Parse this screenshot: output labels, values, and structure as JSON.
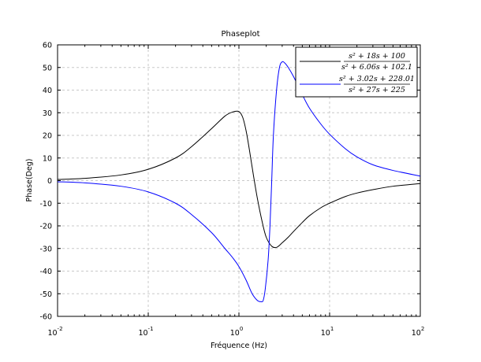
{
  "chart_data": {
    "type": "line",
    "title": "Phaseplot",
    "xlabel": "Fréquence (Hz)",
    "ylabel": "Phase(Deg)",
    "xscale": "log",
    "xlim": [
      0.01,
      100
    ],
    "ylim": [
      -60,
      60
    ],
    "grid": true,
    "legend_position": "top-right",
    "x_ticks": [
      {
        "base": "10",
        "exp": "-2"
      },
      {
        "base": "10",
        "exp": "-1"
      },
      {
        "base": "10",
        "exp": "0"
      },
      {
        "base": "10",
        "exp": "1"
      },
      {
        "base": "10",
        "exp": "2"
      }
    ],
    "y_ticks": [
      60,
      50,
      40,
      30,
      20,
      10,
      0,
      -10,
      -20,
      -30,
      -40,
      -50,
      -60
    ],
    "series": [
      {
        "color": "#000000",
        "legend": {
          "numerator": "s² + 18s + 100",
          "denominator": "s² + 6.06s + 102.1"
        },
        "x": [
          0.01,
          0.02,
          0.05,
          0.1,
          0.2,
          0.3,
          0.5,
          0.7,
          0.85,
          1.0,
          1.1,
          1.2,
          1.3,
          1.45,
          1.6,
          1.8,
          2.0,
          2.3,
          2.6,
          3.0,
          3.5,
          4.0,
          5.0,
          6.0,
          8.0,
          10.0,
          15.0,
          20.0,
          30.0,
          50.0,
          100.0
        ],
        "y": [
          0.5,
          1.0,
          2.5,
          5.0,
          10.0,
          15.0,
          23.0,
          28.5,
          30.3,
          30.5,
          28.0,
          22.0,
          14.0,
          2.0,
          -8.0,
          -18.0,
          -25.0,
          -29.0,
          -29.5,
          -27.5,
          -25.0,
          -22.5,
          -18.5,
          -15.5,
          -12.0,
          -10.0,
          -7.0,
          -5.5,
          -4.0,
          -2.5,
          -1.3
        ]
      },
      {
        "color": "#0000ff",
        "legend": {
          "numerator": "s² + 3.02s + 228.01",
          "denominator": "s² + 27s + 225"
        },
        "x": [
          0.01,
          0.02,
          0.05,
          0.1,
          0.2,
          0.3,
          0.5,
          0.7,
          0.85,
          1.0,
          1.2,
          1.4,
          1.6,
          1.75,
          1.85,
          1.95,
          2.1,
          2.2,
          2.3,
          2.4,
          2.6,
          2.8,
          3.0,
          3.2,
          3.5,
          4.0,
          5.0,
          6.0,
          8.0,
          10.0,
          15.0,
          20.0,
          30.0,
          50.0,
          100.0
        ],
        "y": [
          -0.5,
          -1.0,
          -2.5,
          -5.0,
          -10.0,
          -15.0,
          -23.0,
          -30.0,
          -34.0,
          -38.0,
          -44.0,
          -50.0,
          -53.0,
          -53.5,
          -53.0,
          -48.0,
          -35.0,
          -20.0,
          0.0,
          20.0,
          40.0,
          50.0,
          52.5,
          52.0,
          50.0,
          46.0,
          38.0,
          32.0,
          25.0,
          20.5,
          14.0,
          10.5,
          7.0,
          4.5,
          2.0
        ]
      }
    ]
  }
}
